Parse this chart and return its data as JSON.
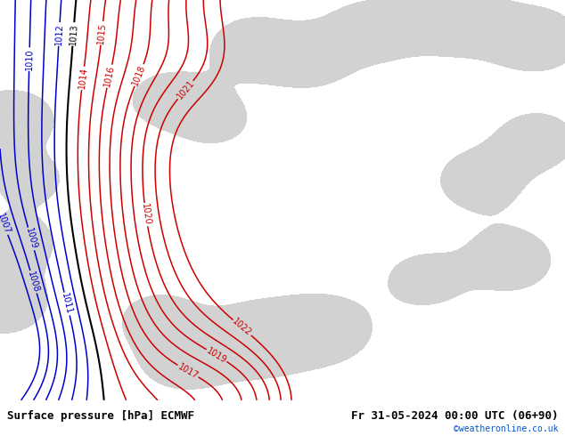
{
  "title_left": "Surface pressure [hPa] ECMWF",
  "title_right": "Fr 31-05-2024 00:00 UTC (06+90)",
  "watermark": "©weatheronline.co.uk",
  "bg_color": "#b8e090",
  "grey_color": "#c0c0c0",
  "contour_levels_red": [
    1014,
    1015,
    1016,
    1017,
    1018,
    1019,
    1020,
    1021,
    1022
  ],
  "contour_levels_blue": [
    1007,
    1008,
    1009,
    1010,
    1011,
    1012
  ],
  "contour_levels_black": [
    1013
  ],
  "contour_color_red": "#cc0000",
  "contour_color_blue": "#0000cc",
  "contour_color_black": "#000000",
  "figsize": [
    6.34,
    4.9
  ],
  "dpi": 100,
  "bottom_bar_color": "#ffffff",
  "label_fontsize": 7,
  "footer_fontsize": 9,
  "footer_font": "monospace"
}
